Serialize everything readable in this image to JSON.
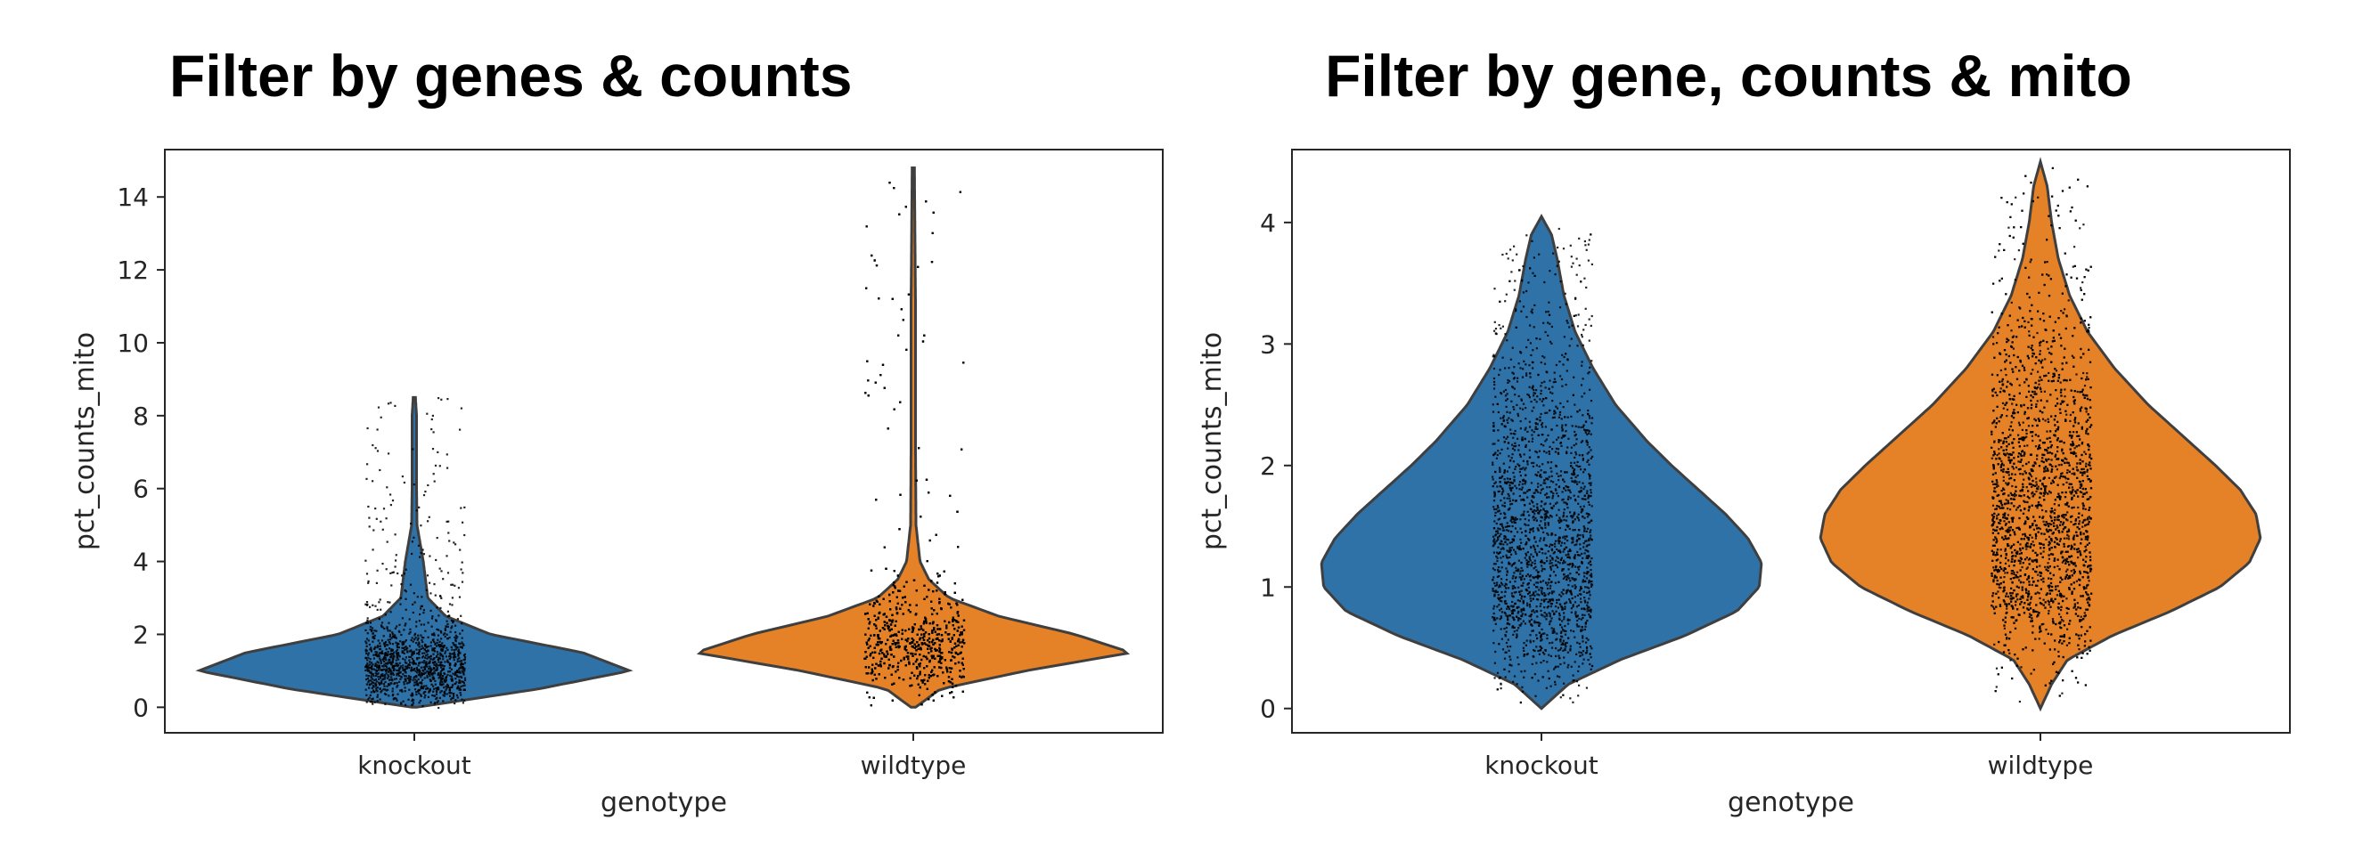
{
  "chart_data": [
    {
      "type": "violin",
      "title": "Filter by genes & counts",
      "xlabel": "genotype",
      "ylabel": "pct_counts_mito",
      "ylim": [
        -0.7,
        15.3
      ],
      "yticks": [
        0,
        2,
        4,
        6,
        8,
        10,
        12,
        14
      ],
      "categories": [
        "knockout",
        "wildtype"
      ],
      "colors": [
        "#2f72a8",
        "#e58127"
      ],
      "violins": [
        {
          "category": "knockout",
          "y": [
            0,
            0.5,
            1.0,
            1.5,
            2.0,
            2.5,
            3.0,
            3.5,
            4.0,
            5.0,
            6.0,
            7.0,
            8.0,
            8.5
          ],
          "half_width": [
            0.01,
            0.55,
            0.96,
            0.75,
            0.34,
            0.14,
            0.06,
            0.05,
            0.04,
            0.012,
            0.01,
            0.01,
            0.01,
            0.005
          ],
          "jitter_range": [
            0.0,
            8.6
          ],
          "jitter_count": 1300
        },
        {
          "category": "wildtype",
          "y": [
            0,
            0.5,
            1.0,
            1.5,
            2.0,
            2.5,
            3.0,
            3.5,
            4.0,
            5.0,
            7.0,
            9.0,
            11.0,
            14.8
          ],
          "half_width": [
            0.01,
            0.12,
            0.5,
            0.97,
            0.72,
            0.38,
            0.16,
            0.07,
            0.03,
            0.012,
            0.01,
            0.01,
            0.01,
            0.005
          ],
          "jitter_range": [
            0.0,
            14.8
          ],
          "jitter_count": 2400
        }
      ]
    },
    {
      "type": "violin",
      "title": "Filter by gene, counts & mito",
      "xlabel": "genotype",
      "ylabel": "pct_counts_mito",
      "ylim": [
        -0.2,
        4.6
      ],
      "yticks": [
        0,
        1,
        2,
        3,
        4
      ],
      "categories": [
        "knockout",
        "wildtype"
      ],
      "colors": [
        "#2f72a8",
        "#e58127"
      ],
      "violins": [
        {
          "category": "knockout",
          "y": [
            0,
            0.2,
            0.4,
            0.6,
            0.8,
            1.0,
            1.2,
            1.4,
            1.6,
            1.8,
            2.0,
            2.2,
            2.5,
            2.8,
            3.1,
            3.4,
            3.7,
            3.9,
            4.05
          ],
          "half_width": [
            0.0,
            0.12,
            0.35,
            0.64,
            0.87,
            0.97,
            0.98,
            0.92,
            0.82,
            0.7,
            0.58,
            0.47,
            0.33,
            0.23,
            0.15,
            0.1,
            0.07,
            0.045,
            0.0
          ],
          "jitter_range": [
            0.0,
            4.0
          ],
          "jitter_count": 2200
        },
        {
          "category": "wildtype",
          "y": [
            0,
            0.2,
            0.4,
            0.6,
            0.8,
            1.0,
            1.2,
            1.4,
            1.6,
            1.8,
            2.0,
            2.2,
            2.5,
            2.8,
            3.1,
            3.4,
            3.7,
            4.0,
            4.3,
            4.5
          ],
          "half_width": [
            0.0,
            0.05,
            0.12,
            0.32,
            0.58,
            0.8,
            0.93,
            0.98,
            0.96,
            0.89,
            0.78,
            0.66,
            0.48,
            0.33,
            0.21,
            0.13,
            0.08,
            0.05,
            0.03,
            0.0
          ],
          "jitter_range": [
            0.0,
            4.5
          ],
          "jitter_count": 3200
        }
      ]
    }
  ]
}
